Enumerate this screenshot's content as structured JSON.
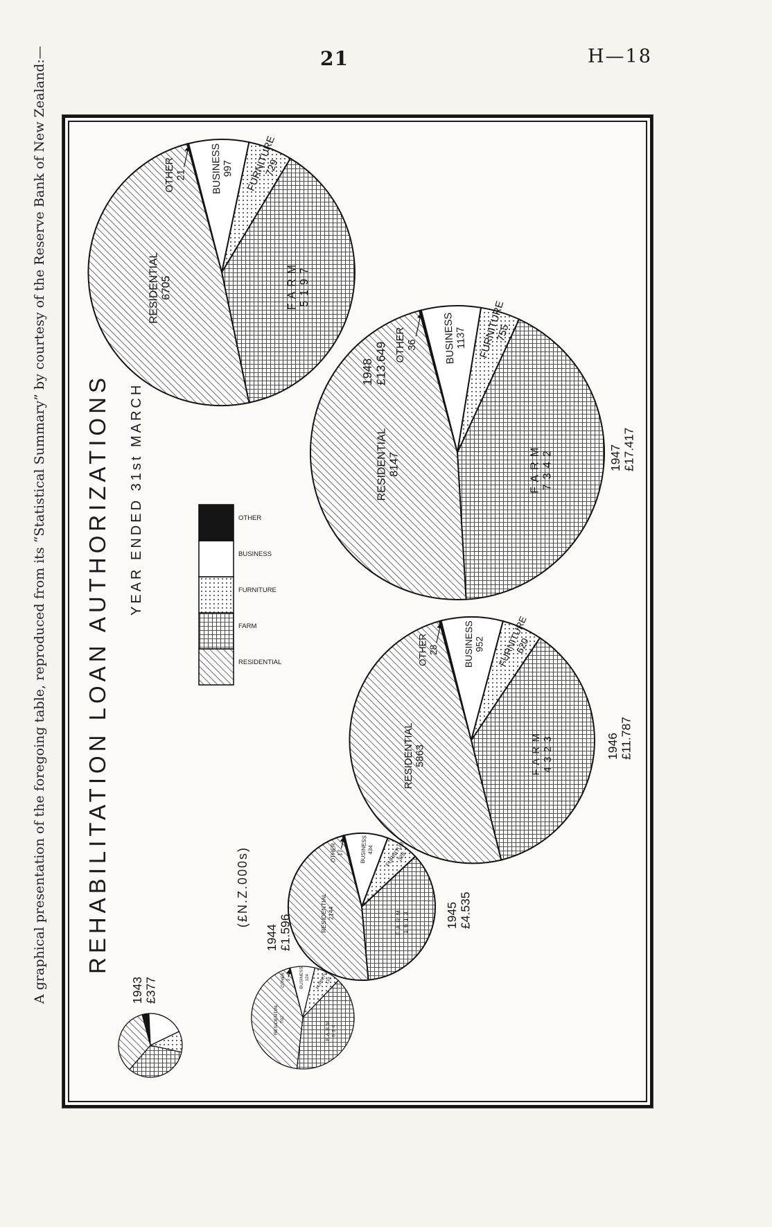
{
  "page": {
    "number": "21",
    "doc_ref": "H—18",
    "side_note": "A graphical presentation of the foregoing table, reproduced from its “Statistical Summary” by courtesy of the Reserve Bank of New Zealand:—"
  },
  "chart": {
    "title": "REHABILITATION  LOAN  AUTHORIZATIONS",
    "subtitle": "YEAR  ENDED  31st  MARCH",
    "units_label": "(£N.Z.000s)"
  },
  "legend": {
    "items": [
      {
        "label": "RESIDENTIAL",
        "pattern": "diagonal-hatch"
      },
      {
        "label": "FARM",
        "pattern": "cross-hatch"
      },
      {
        "label": "FURNITURE",
        "pattern": "dots"
      },
      {
        "label": "BUSINESS",
        "pattern": "plain"
      },
      {
        "label": "OTHER",
        "pattern": "solid-black"
      }
    ]
  },
  "chart_data": {
    "type": "pie",
    "title": "REHABILITATION LOAN AUTHORIZATIONS",
    "subtitle": "YEAR ENDED 31st MARCH",
    "units": "£N.Z.000s",
    "categories": [
      "RESIDENTIAL",
      "FARM",
      "FURNITURE",
      "BUSINESS",
      "OTHER"
    ],
    "area_encoding": "pie area proportional to yearly total",
    "pies": [
      {
        "year": "1943",
        "total_label": "£377",
        "total": 377,
        "labels_visible": false,
        "slices": [
          {
            "category": "RESIDENTIAL",
            "value": 130
          },
          {
            "category": "FARM",
            "value": 124
          },
          {
            "category": "FURNITURE",
            "value": 40
          },
          {
            "category": "BUSINESS",
            "value": 70
          },
          {
            "category": "OTHER",
            "value": 13
          }
        ]
      },
      {
        "year": "1944",
        "total_label": "£1.596",
        "total": 1596,
        "slices": [
          {
            "category": "RESIDENTIAL",
            "value": 702
          },
          {
            "category": "FARM",
            "value": 634
          },
          {
            "category": "FURNITURE",
            "value": 133
          },
          {
            "category": "BUSINESS",
            "value": 124
          },
          {
            "category": "OTHER",
            "value": 3
          }
        ]
      },
      {
        "year": "1945",
        "total_label": "£4.535",
        "total": 4535,
        "slices": [
          {
            "category": "RESIDENTIAL",
            "value": 2144
          },
          {
            "category": "FARM",
            "value": 1613
          },
          {
            "category": "FURNITURE",
            "value": 328
          },
          {
            "category": "BUSINESS",
            "value": 434
          },
          {
            "category": "OTHER",
            "value": 17
          }
        ]
      },
      {
        "year": "1946",
        "total_label": "£11.787",
        "total": 11787,
        "slices": [
          {
            "category": "RESIDENTIAL",
            "value": 5863
          },
          {
            "category": "FARM",
            "value": 4323
          },
          {
            "category": "FURNITURE",
            "value": 620
          },
          {
            "category": "BUSINESS",
            "value": 952
          },
          {
            "category": "OTHER",
            "value": 28
          }
        ]
      },
      {
        "year": "1947",
        "total_label": "£17.417",
        "total": 17417,
        "slices": [
          {
            "category": "RESIDENTIAL",
            "value": 8147
          },
          {
            "category": "FARM",
            "value": 7342
          },
          {
            "category": "FURNITURE",
            "value": 755
          },
          {
            "category": "BUSINESS",
            "value": 1137
          },
          {
            "category": "OTHER",
            "value": 36
          }
        ]
      },
      {
        "year": "1948",
        "total_label": "£13.649",
        "total": 13649,
        "slices": [
          {
            "category": "RESIDENTIAL",
            "value": 6705
          },
          {
            "category": "FARM",
            "value": 5197
          },
          {
            "category": "FURNITURE",
            "value": 729
          },
          {
            "category": "BUSINESS",
            "value": 997
          },
          {
            "category": "OTHER",
            "value": 21
          }
        ]
      }
    ]
  }
}
